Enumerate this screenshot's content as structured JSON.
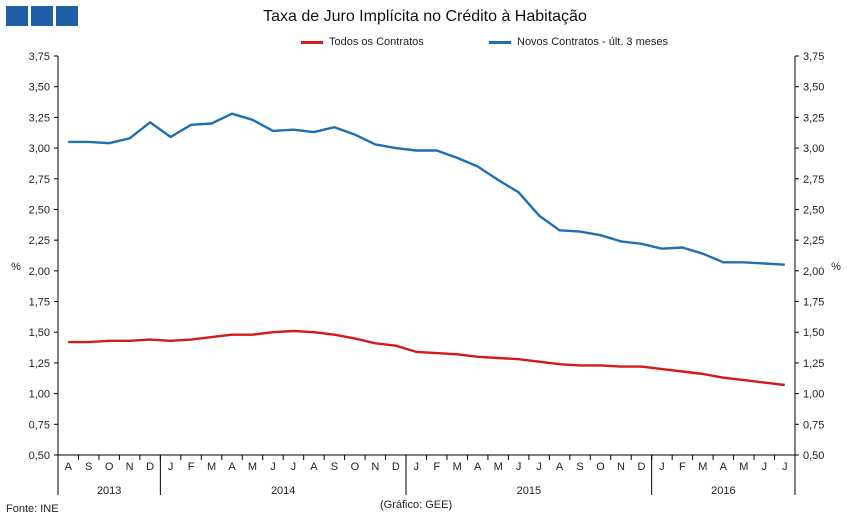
{
  "header": {
    "logo_icon": "institution-logo-icon",
    "title": "Taxa de Juro Implícita no Crédito à Habitação"
  },
  "footer": {
    "source": "Fonte: INE",
    "note": "(Gráfico: GEE)"
  },
  "colors": {
    "todos": "#d21a1a",
    "novos": "#1f6fb3",
    "logo": "#1f5fa8"
  },
  "chart_data": {
    "type": "line",
    "title": "Taxa de Juro Implícita no Crédito à Habitação",
    "ylabel_left": "%",
    "ylabel_right": "%",
    "ylim": [
      0.5,
      3.75
    ],
    "yticks": [
      "0,50",
      "0,75",
      "1,00",
      "1,25",
      "1,50",
      "1,75",
      "2,00",
      "2,25",
      "2,50",
      "2,75",
      "3,00",
      "3,25",
      "3,50",
      "3,75"
    ],
    "categories": [
      "A",
      "S",
      "O",
      "N",
      "D",
      "J",
      "F",
      "M",
      "A",
      "M",
      "J",
      "J",
      "A",
      "S",
      "O",
      "N",
      "D",
      "J",
      "F",
      "M",
      "A",
      "M",
      "J",
      "J",
      "A",
      "S",
      "O",
      "N",
      "D",
      "J",
      "F",
      "M",
      "A",
      "M",
      "J",
      "J"
    ],
    "years": [
      {
        "label": "2013",
        "start": 0,
        "end": 5
      },
      {
        "label": "2014",
        "start": 5,
        "end": 17
      },
      {
        "label": "2015",
        "start": 17,
        "end": 29
      },
      {
        "label": "2016",
        "start": 29,
        "end": 36
      }
    ],
    "series": [
      {
        "name": "Todos os Contratos",
        "color": "#d21a1a",
        "values": [
          1.42,
          1.42,
          1.43,
          1.43,
          1.44,
          1.43,
          1.44,
          1.46,
          1.48,
          1.48,
          1.5,
          1.51,
          1.5,
          1.48,
          1.45,
          1.41,
          1.39,
          1.34,
          1.33,
          1.32,
          1.3,
          1.29,
          1.28,
          1.26,
          1.24,
          1.23,
          1.23,
          1.22,
          1.22,
          1.2,
          1.18,
          1.16,
          1.13,
          1.11,
          1.09,
          1.07
        ]
      },
      {
        "name": "Novos Contratos - últ. 3 meses",
        "color": "#1f6fb3",
        "values": [
          3.05,
          3.05,
          3.04,
          3.08,
          3.21,
          3.09,
          3.19,
          3.2,
          3.28,
          3.23,
          3.14,
          3.15,
          3.13,
          3.17,
          3.11,
          3.03,
          3.0,
          2.98,
          2.98,
          2.92,
          2.85,
          2.74,
          2.64,
          2.45,
          2.33,
          2.32,
          2.29,
          2.24,
          2.22,
          2.18,
          2.19,
          2.14,
          2.07,
          2.07,
          2.06,
          2.05
        ]
      }
    ],
    "legend_position": "top"
  }
}
